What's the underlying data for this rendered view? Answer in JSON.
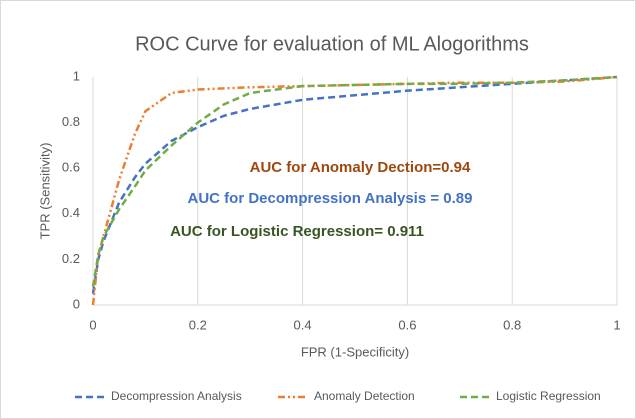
{
  "chart_data": {
    "type": "line",
    "title": "ROC Curve for evaluation of ML Alogorithms",
    "x_label": "FPR (1-Specificity)",
    "y_label": "TPR (Sensitivity)",
    "x": [
      0,
      0.01,
      0.02,
      0.05,
      0.08,
      0.1,
      0.15,
      0.2,
      0.25,
      0.3,
      0.4,
      0.5,
      0.6,
      0.7,
      0.8,
      0.9,
      1
    ],
    "series": [
      {
        "name": "Decompression Analysis",
        "color": "#4472c4",
        "dash": "dashed",
        "values": [
          0.05,
          0.2,
          0.28,
          0.45,
          0.56,
          0.62,
          0.72,
          0.78,
          0.83,
          0.86,
          0.9,
          0.92,
          0.94,
          0.955,
          0.97,
          0.985,
          1
        ]
      },
      {
        "name": "Anomaly Detection",
        "color": "#ed7d31",
        "dash": "dash-dot-dot",
        "values": [
          0,
          0.22,
          0.3,
          0.55,
          0.75,
          0.85,
          0.93,
          0.945,
          0.95,
          0.955,
          0.96,
          0.965,
          0.97,
          0.975,
          0.975,
          0.98,
          1
        ]
      },
      {
        "name": "Logistic Regression",
        "color": "#70ad47",
        "dash": "dashed",
        "values": [
          0.08,
          0.22,
          0.3,
          0.42,
          0.52,
          0.59,
          0.7,
          0.8,
          0.88,
          0.93,
          0.96,
          0.965,
          0.97,
          0.97,
          0.975,
          0.985,
          1
        ]
      }
    ],
    "annotations": [
      {
        "text": "AUC for Anomaly Dection=0.94",
        "color": "#9e480e"
      },
      {
        "text": "AUC for Decompression Analysis = 0.89",
        "color": "#4472c4"
      },
      {
        "text": "AUC for Logistic Regression= 0.911",
        "color": "#375623"
      }
    ],
    "xlim": [
      0,
      1
    ],
    "ylim": [
      0,
      1
    ],
    "xticks": [
      0,
      0.2,
      0.4,
      0.6,
      0.8,
      1
    ],
    "yticks": [
      0,
      0.2,
      0.4,
      0.6,
      0.8,
      1
    ],
    "grid": "x",
    "legend": "bottom"
  }
}
